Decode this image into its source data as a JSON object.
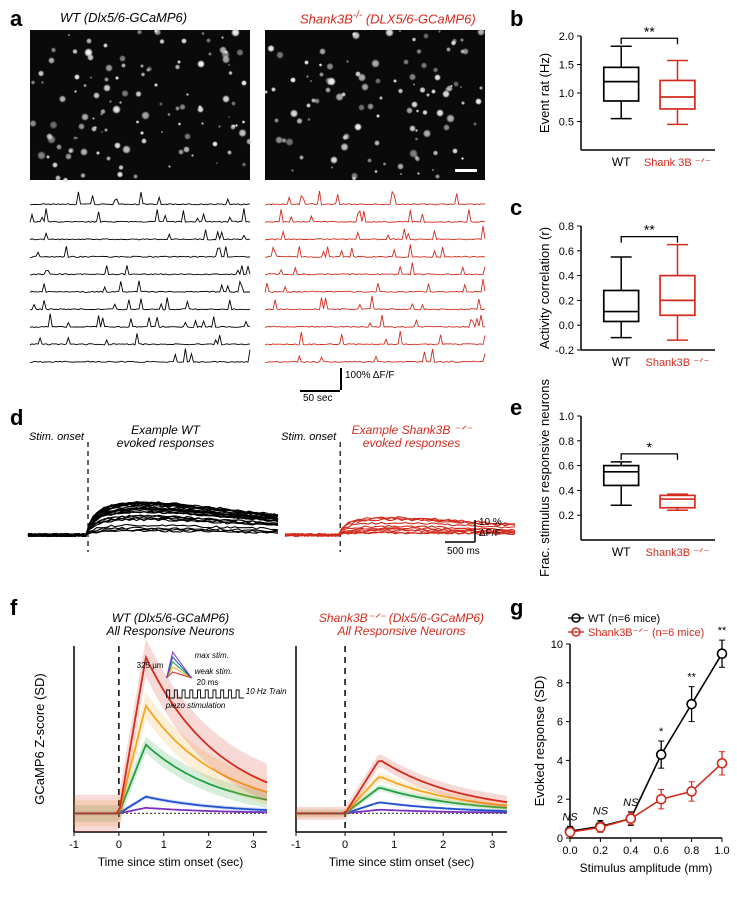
{
  "colors": {
    "wt": "#000000",
    "ko": "#d32b1e",
    "axis": "#000000",
    "bg": "#ffffff",
    "stim_colors": [
      "#7b2fbf",
      "#2050d0",
      "#1fa040",
      "#f5a623",
      "#d32b1e",
      "#555555"
    ]
  },
  "labels": {
    "a": "a",
    "b": "b",
    "c": "c",
    "d": "d",
    "e": "e",
    "f": "f",
    "g": "g"
  },
  "panel_a": {
    "title_wt": "WT (Dlx5/6-GCaMP6)",
    "title_ko": "Shank3B⁻ᐟ⁻ (DLX5/6-GCaMP6)",
    "n_traces": 10,
    "scale_y": "100% ΔF/F",
    "scale_x": "50 sec"
  },
  "panel_b": {
    "ylabel": "Event rat (Hz)",
    "ylim": [
      0,
      2.0
    ],
    "yticks": [
      0.5,
      1.0,
      1.5,
      2.0
    ],
    "xticks": [
      "WT",
      "Shank 3B ⁻ᐟ⁻"
    ],
    "sig": "**",
    "box_wt": {
      "min": 0.55,
      "q1": 0.86,
      "med": 1.2,
      "q3": 1.45,
      "max": 1.82
    },
    "box_ko": {
      "min": 0.45,
      "q1": 0.72,
      "med": 0.93,
      "q3": 1.22,
      "max": 1.57
    }
  },
  "panel_c": {
    "ylabel": "Activity correlation (r)",
    "ylim": [
      -0.2,
      0.8
    ],
    "yticks": [
      -0.2,
      0.0,
      0.2,
      0.4,
      0.6,
      0.8
    ],
    "xticks": [
      "WT",
      "Shank3B ⁻ᐟ⁻"
    ],
    "sig": "**",
    "box_wt": {
      "min": -0.1,
      "q1": 0.03,
      "med": 0.11,
      "q3": 0.28,
      "max": 0.55
    },
    "box_ko": {
      "min": -0.12,
      "q1": 0.08,
      "med": 0.2,
      "q3": 0.4,
      "max": 0.65
    }
  },
  "panel_d": {
    "title_wt": "Example WT\nevoked responses",
    "title_ko": "Example Shank3B ⁻ᐟ⁻\nevoked responses",
    "stim_label": "Stim. onset",
    "scale_y": "10 %\nΔF/F",
    "scale_x": "500 ms"
  },
  "panel_e": {
    "ylabel": "Frac. stimulus responsive neurons",
    "ylim": [
      0,
      1.0
    ],
    "yticks": [
      0.2,
      0.4,
      0.6,
      0.8,
      1.0
    ],
    "xticks": [
      "WT",
      "Shank3B ⁻ᐟ⁻"
    ],
    "sig": "*",
    "box_wt": {
      "min": 0.28,
      "q1": 0.44,
      "med": 0.55,
      "q3": 0.6,
      "max": 0.63
    },
    "box_ko": {
      "min": 0.24,
      "q1": 0.26,
      "med": 0.33,
      "q3": 0.36,
      "max": 0.37
    }
  },
  "panel_f": {
    "title_wt": "WT (Dlx5/6-GCaMP6)\nAll Responsive Neurons",
    "title_ko": "Shank3B⁻ᐟ⁻  (Dlx5/6-GCaMP6)\nAll Responsive Neurons",
    "ylabel": "GCaMP6 Z-score (SD)",
    "xlabel": "Time since stim onset (sec)",
    "xlim": [
      -1,
      3.3
    ],
    "ylim": [
      -1,
      9
    ],
    "xticks": [
      -1,
      0,
      1,
      2,
      3
    ],
    "inset": {
      "max_label": "max stim.",
      "weak_label": "weak stim.",
      "amp_label": "325 µm",
      "time_label": "20 ms",
      "train_label": "10 Hz Train",
      "piezo_label": "piezo stimulation"
    },
    "curves_wt": {
      "peaks": [
        0.3,
        0.9,
        3.7,
        5.8,
        8.4
      ],
      "peak_x": 0.6,
      "baseline_y": 0.0
    },
    "curves_ko": {
      "peaks": [
        0.2,
        0.6,
        1.4,
        2.0,
        2.9
      ],
      "peak_x": 0.7
    }
  },
  "panel_g": {
    "ylabel": "Evoked response (SD)",
    "xlabel": "Stimulus amplitude (mm)",
    "xlim": [
      0,
      1.0
    ],
    "ylim": [
      0,
      10
    ],
    "xticks": [
      0.0,
      0.2,
      0.4,
      0.6,
      0.8,
      1.0
    ],
    "yticks": [
      0,
      2,
      4,
      6,
      8,
      10
    ],
    "legend_wt": "WT (n=6 mice)",
    "legend_ko": "Shank3B⁻ᐟ⁻ (n=6 mice)",
    "sig_labels": [
      "NS",
      "NS",
      "NS",
      "*",
      "**",
      "**"
    ],
    "wt_y": [
      0.35,
      0.6,
      1.0,
      4.3,
      6.9,
      9.5
    ],
    "wt_err": [
      0.25,
      0.3,
      0.35,
      0.7,
      0.9,
      0.7
    ],
    "ko_y": [
      0.3,
      0.55,
      1.0,
      2.0,
      2.4,
      3.85
    ],
    "ko_err": [
      0.2,
      0.25,
      0.3,
      0.5,
      0.5,
      0.6
    ]
  }
}
